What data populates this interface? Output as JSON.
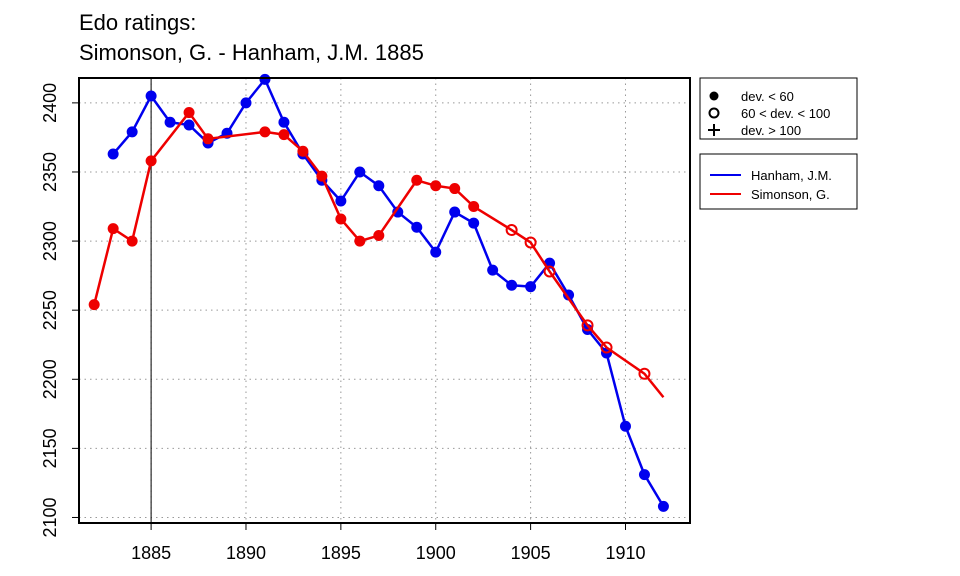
{
  "chart_data": {
    "type": "line",
    "title_line1": "Edo ratings:",
    "title_line2": "Simonson, G. - Hanham, J.M. 1885",
    "xlabel": "",
    "ylabel": "",
    "xlim": [
      1881.2,
      1913.4
    ],
    "ylim": [
      2096,
      2418
    ],
    "x_ticks": [
      1885,
      1890,
      1895,
      1900,
      1905,
      1910
    ],
    "y_ticks": [
      2100,
      2150,
      2200,
      2250,
      2300,
      2350,
      2400
    ],
    "grid": true,
    "vertical_marker_x": 1885,
    "legend_markers": [
      {
        "symbol": "filled-circle",
        "label": "dev. < 60"
      },
      {
        "symbol": "open-circle",
        "label": "60 < dev. < 100"
      },
      {
        "symbol": "plus",
        "label": "dev. > 100"
      }
    ],
    "legend_position": "right",
    "series": [
      {
        "name": "Hanham, J.M.",
        "color": "#0000ee",
        "points": [
          {
            "x": 1883,
            "y": 2363,
            "m": "filled"
          },
          {
            "x": 1884,
            "y": 2379,
            "m": "filled"
          },
          {
            "x": 1885,
            "y": 2405,
            "m": "filled"
          },
          {
            "x": 1886,
            "y": 2386,
            "m": "filled"
          },
          {
            "x": 1887,
            "y": 2384,
            "m": "filled"
          },
          {
            "x": 1888,
            "y": 2371,
            "m": "filled"
          },
          {
            "x": 1889,
            "y": 2378,
            "m": "filled"
          },
          {
            "x": 1890,
            "y": 2400,
            "m": "filled"
          },
          {
            "x": 1891,
            "y": 2417,
            "m": "filled"
          },
          {
            "x": 1892,
            "y": 2386,
            "m": "filled"
          },
          {
            "x": 1893,
            "y": 2363,
            "m": "filled"
          },
          {
            "x": 1894,
            "y": 2344,
            "m": "filled"
          },
          {
            "x": 1895,
            "y": 2329,
            "m": "filled"
          },
          {
            "x": 1896,
            "y": 2350,
            "m": "filled"
          },
          {
            "x": 1897,
            "y": 2340,
            "m": "filled"
          },
          {
            "x": 1898,
            "y": 2321,
            "m": "filled"
          },
          {
            "x": 1899,
            "y": 2310,
            "m": "filled"
          },
          {
            "x": 1900,
            "y": 2292,
            "m": "filled"
          },
          {
            "x": 1901,
            "y": 2321,
            "m": "filled"
          },
          {
            "x": 1902,
            "y": 2313,
            "m": "filled"
          },
          {
            "x": 1903,
            "y": 2279,
            "m": "filled"
          },
          {
            "x": 1904,
            "y": 2268,
            "m": "filled"
          },
          {
            "x": 1905,
            "y": 2267,
            "m": "filled"
          },
          {
            "x": 1906,
            "y": 2284,
            "m": "filled"
          },
          {
            "x": 1907,
            "y": 2261,
            "m": "filled"
          },
          {
            "x": 1908,
            "y": 2236,
            "m": "filled"
          },
          {
            "x": 1909,
            "y": 2219,
            "m": "filled"
          },
          {
            "x": 1910,
            "y": 2166,
            "m": "filled"
          },
          {
            "x": 1911,
            "y": 2131,
            "m": "filled"
          },
          {
            "x": 1912,
            "y": 2108,
            "m": "filled"
          }
        ]
      },
      {
        "name": "Simonson, G.",
        "color": "#ee0000",
        "points": [
          {
            "x": 1882,
            "y": 2254,
            "m": "filled"
          },
          {
            "x": 1883,
            "y": 2309,
            "m": "filled"
          },
          {
            "x": 1884,
            "y": 2300,
            "m": "filled"
          },
          {
            "x": 1885,
            "y": 2358,
            "m": "filled"
          },
          {
            "x": 1887,
            "y": 2393,
            "m": "filled"
          },
          {
            "x": 1888,
            "y": 2374,
            "m": "filled"
          },
          {
            "x": 1891,
            "y": 2379,
            "m": "filled"
          },
          {
            "x": 1892,
            "y": 2377,
            "m": "filled"
          },
          {
            "x": 1893,
            "y": 2365,
            "m": "filled"
          },
          {
            "x": 1894,
            "y": 2347,
            "m": "filled"
          },
          {
            "x": 1895,
            "y": 2316,
            "m": "filled"
          },
          {
            "x": 1896,
            "y": 2300,
            "m": "filled"
          },
          {
            "x": 1897,
            "y": 2304,
            "m": "filled"
          },
          {
            "x": 1899,
            "y": 2344,
            "m": "filled"
          },
          {
            "x": 1900,
            "y": 2340,
            "m": "filled"
          },
          {
            "x": 1901,
            "y": 2338,
            "m": "filled"
          },
          {
            "x": 1902,
            "y": 2325,
            "m": "filled"
          },
          {
            "x": 1904,
            "y": 2308,
            "m": "open"
          },
          {
            "x": 1905,
            "y": 2299,
            "m": "open"
          },
          {
            "x": 1906,
            "y": 2278,
            "m": "open"
          },
          {
            "x": 1908,
            "y": 2239,
            "m": "open"
          },
          {
            "x": 1909,
            "y": 2223,
            "m": "open"
          },
          {
            "x": 1911,
            "y": 2204,
            "m": "open"
          },
          {
            "x": 1912,
            "y": 2187,
            "m": "none"
          }
        ]
      }
    ]
  }
}
